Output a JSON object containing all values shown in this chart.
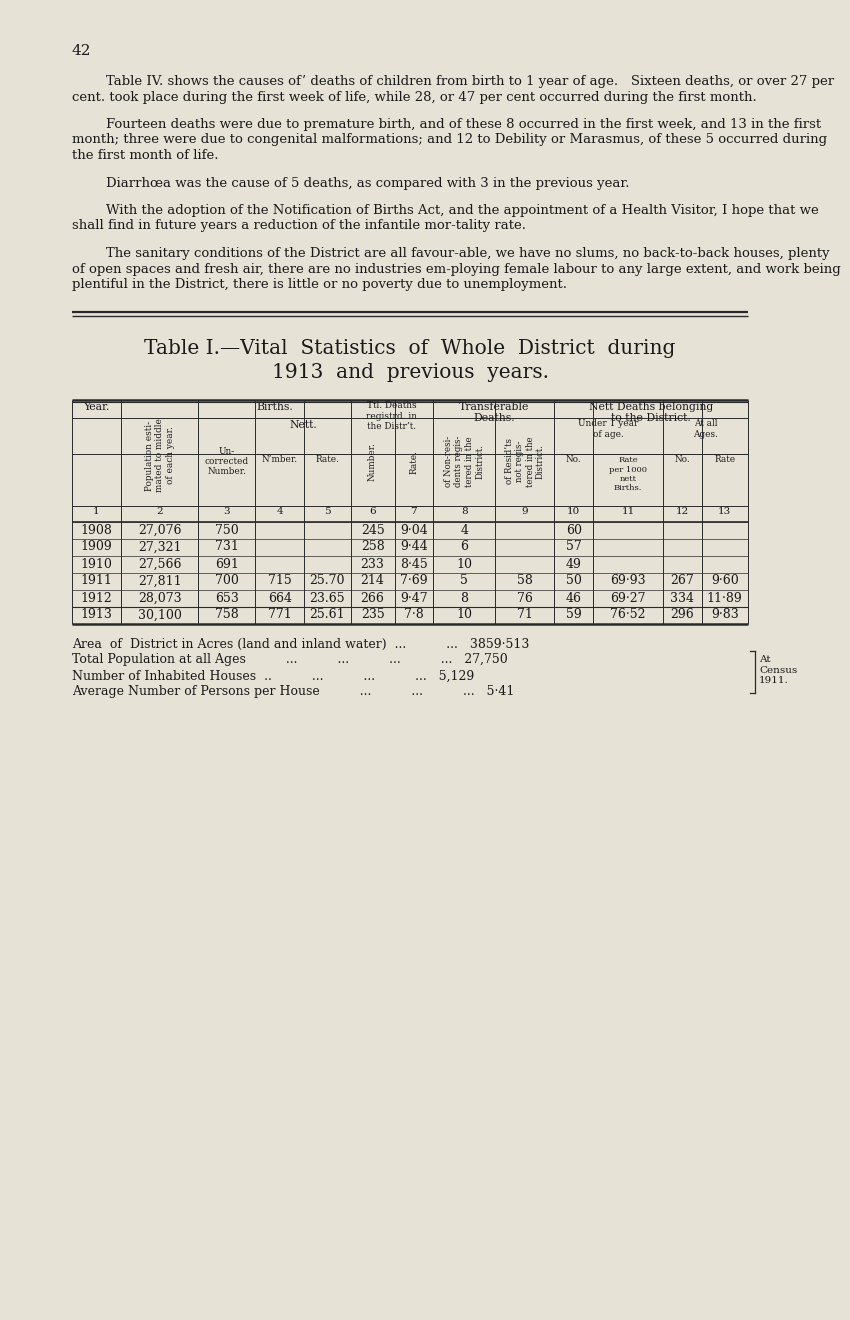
{
  "bg_color": "#e6e2d6",
  "page_number": "42",
  "paragraphs_raw": [
    [
      "        Table IV. shows the causes of’ deaths of children from birth to 1 year of age.   Sixteen deaths, or over 27 per",
      "cent. took place during the first week of life, while 28, or 47 per cent occurred during the first month."
    ],
    [
      "        Fourteen deaths were due to premature birth, and of these 8 occurred in the first week, and 13 in the first",
      "month; three were due to congenital malformations; and 12 to Debility or Marasmus, of these 5 occurred during",
      "the first month of life."
    ],
    [
      "        Diarrhœa was the cause of 5 deaths, as compared with 3 in the previous year."
    ],
    [
      "        With the adoption of the Notification of Births Act, and the appointment of a Health Visitor, I hope that we",
      "shall find in future years a reduction of the infantile mor-tality rate."
    ],
    [
      "        The sanitary conditions of the District are all favour-able, we have no slums, no back-to-back houses, plenty",
      "of open spaces and fresh air, there are no industries em-ploying female labour to any large extent, and work being",
      "plentiful in the District, there is little or no poverty due to unemployment."
    ]
  ],
  "table_title_line1": "Table I.—Vital  Statistics  of  Whole  District  during",
  "table_title_line2": "1913  and  previous  years.",
  "data_rows": [
    {
      "year": "1908",
      "pop": "27,076",
      "births_unc": "750",
      "births_nett_n": "",
      "births_nett_r": "",
      "ttl_num": "245",
      "ttl_rate": "9·04",
      "transf_nonres": "4",
      "transf_res": "",
      "under1_no": "60",
      "under1_rate": "",
      "allages_no": "",
      "allages_rate": ""
    },
    {
      "year": "1909",
      "pop": "27,321",
      "births_unc": "731",
      "births_nett_n": "",
      "births_nett_r": "",
      "ttl_num": "258",
      "ttl_rate": "9·44",
      "transf_nonres": "6",
      "transf_res": "",
      "under1_no": "57",
      "under1_rate": "",
      "allages_no": "",
      "allages_rate": ""
    },
    {
      "year": "1910",
      "pop": "27,566",
      "births_unc": "691",
      "births_nett_n": "",
      "births_nett_r": "",
      "ttl_num": "233",
      "ttl_rate": "8·45",
      "transf_nonres": "10",
      "transf_res": "",
      "under1_no": "49",
      "under1_rate": "",
      "allages_no": "",
      "allages_rate": ""
    },
    {
      "year": "1911",
      "pop": "27,811",
      "births_unc": "700",
      "births_nett_n": "715",
      "births_nett_r": "25.70",
      "ttl_num": "214",
      "ttl_rate": "7·69",
      "transf_nonres": "5",
      "transf_res": "58",
      "under1_no": "50",
      "under1_rate": "69·93",
      "allages_no": "267",
      "allages_rate": "9·60"
    },
    {
      "year": "1912",
      "pop": "28,073",
      "births_unc": "653",
      "births_nett_n": "664",
      "births_nett_r": "23.65",
      "ttl_num": "266",
      "ttl_rate": "9·47",
      "transf_nonres": "8",
      "transf_res": "76",
      "under1_no": "46",
      "under1_rate": "69·27",
      "allages_no": "334",
      "allages_rate": "11·89"
    }
  ],
  "last_row": {
    "year": "1913",
    "pop": "30,100",
    "births_unc": "758",
    "births_nett_n": "771",
    "births_nett_r": "25.61",
    "ttl_num": "235",
    "ttl_rate": "7·8",
    "transf_nonres": "10",
    "transf_res": "71",
    "under1_no": "59",
    "under1_rate": "76·52",
    "allages_no": "296",
    "allages_rate": "9·83"
  },
  "footer_lines": [
    "Area  of  District in Acres (land and inland water)  ...          ...   3859·513",
    "Total Population at all Ages          ...          ...          ...          ...   27,750",
    "Number of Inhabited Houses  ..          ...          ...          ...   5,129",
    "Average Number of Persons per House          ...          ...          ...   5·41"
  ],
  "footer_bracket_label": "At\nCensus\n1911."
}
